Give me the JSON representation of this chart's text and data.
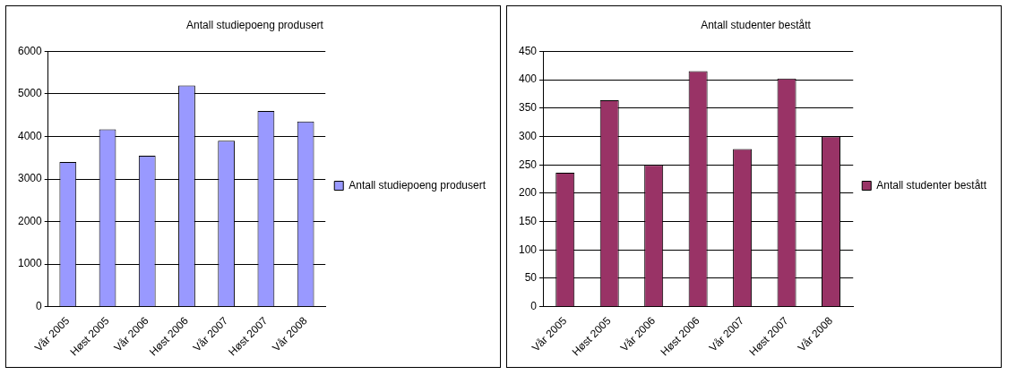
{
  "chart_data": [
    {
      "type": "bar",
      "title": "Antall studiepoeng produsert",
      "categories": [
        "Vår 2005",
        "Høst 2005",
        "Vår 2006",
        "Høst 2006",
        "Vår 2007",
        "Høst 2007",
        "Vår 2008"
      ],
      "series": [
        {
          "name": "Antall studiepoeng produsert",
          "color": "#9999ff",
          "values": [
            3400,
            4170,
            3550,
            5200,
            3900,
            4600,
            4350
          ]
        }
      ],
      "ylim": [
        0,
        6000
      ],
      "yticks": [
        0,
        1000,
        2000,
        3000,
        4000,
        5000,
        6000
      ],
      "grid": "y",
      "legend": "right"
    },
    {
      "type": "bar",
      "title": "Antall studenter bestått",
      "categories": [
        "Vår 2005",
        "Høst 2005",
        "Vår 2006",
        "Høst 2006",
        "Vår 2007",
        "Høst 2007",
        "Vår 2008"
      ],
      "series": [
        {
          "name": "Antall studenter bestått",
          "color": "#993366",
          "values": [
            236,
            364,
            250,
            415,
            278,
            402,
            300
          ]
        }
      ],
      "ylim": [
        0,
        450
      ],
      "yticks": [
        0,
        50,
        100,
        150,
        200,
        250,
        300,
        350,
        400,
        450
      ],
      "grid": "y",
      "legend": "right"
    }
  ]
}
